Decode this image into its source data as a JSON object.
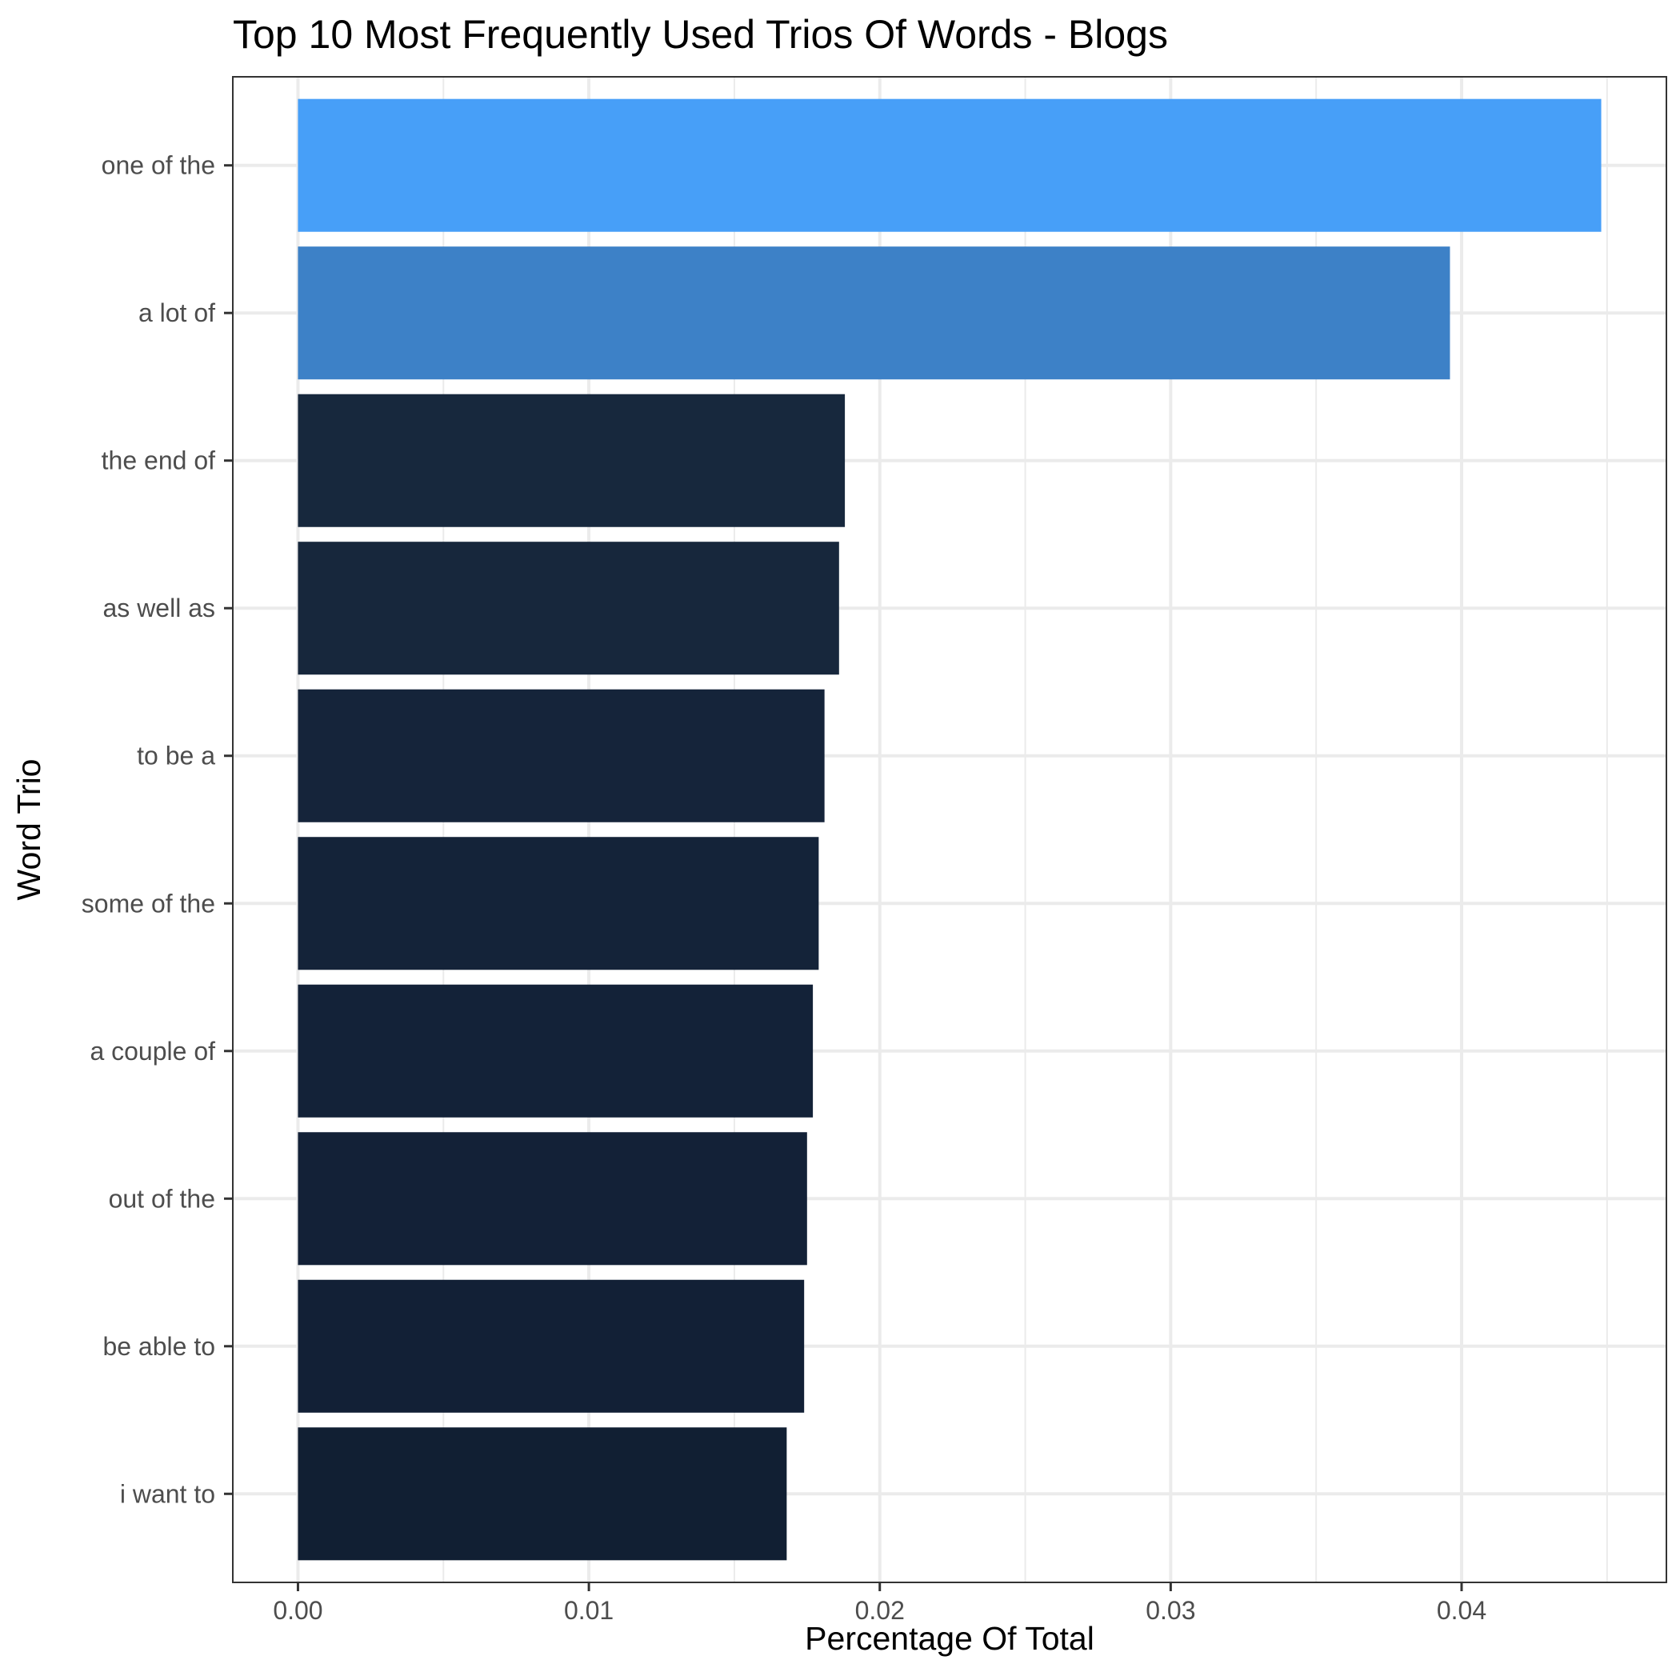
{
  "chart_data": {
    "type": "bar",
    "orientation": "horizontal",
    "title": "Top 10 Most Frequently Used Trios Of Words - Blogs",
    "xlabel": "Percentage Of Total",
    "ylabel": "Word Trio",
    "categories": [
      "one of the",
      "a lot of",
      "the end of",
      "as well as",
      "to be a",
      "some of the",
      "a couple of",
      "out of the",
      "be able to",
      "i want to"
    ],
    "values": [
      0.0448,
      0.0396,
      0.0188,
      0.0186,
      0.0181,
      0.0179,
      0.0177,
      0.0175,
      0.0174,
      0.0168
    ],
    "colors": [
      "#479ff8",
      "#3d81c7",
      "#17283d",
      "#17273c",
      "#15243a",
      "#142339",
      "#132238",
      "#132137",
      "#122036",
      "#111f33"
    ],
    "x_ticks": [
      0,
      0.01,
      0.02,
      0.03,
      0.04
    ],
    "x_tick_labels": [
      "0.00",
      "0.01",
      "0.02",
      "0.03",
      "0.04"
    ],
    "xlim": [
      -0.00224,
      0.04704
    ],
    "grid": true,
    "legend": "none"
  }
}
